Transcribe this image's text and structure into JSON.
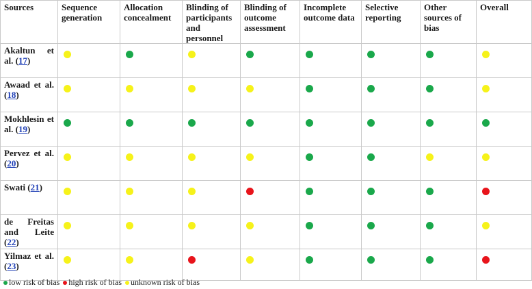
{
  "columns": [
    "Sources",
    "Sequence generation",
    "Allocation concealment",
    "Blinding of participants and personnel",
    "Blinding of outcome assessment",
    "Incomplete outcome data",
    "Selective reporting",
    "Other sources of bias",
    "Overall"
  ],
  "rows": [
    {
      "source": "Akaltun et al. (",
      "ref": "17",
      "close": ")",
      "ratings": [
        "unknown",
        "low",
        "unknown",
        "low",
        "low",
        "low",
        "low",
        "unknown"
      ]
    },
    {
      "source": "Awaad et al. (",
      "ref": "18",
      "close": ")",
      "ratings": [
        "unknown",
        "unknown",
        "unknown",
        "unknown",
        "low",
        "low",
        "low",
        "unknown"
      ]
    },
    {
      "source": "Mokhlesin et al. (",
      "ref": "19",
      "close": ")",
      "ratings": [
        "low",
        "low",
        "low",
        "low",
        "low",
        "low",
        "low",
        "low"
      ]
    },
    {
      "source": "Pervez et al. (",
      "ref": "20",
      "close": ")",
      "ratings": [
        "unknown",
        "unknown",
        "unknown",
        "unknown",
        "low",
        "low",
        "unknown",
        "unknown"
      ]
    },
    {
      "source": "Swati (",
      "ref": "21",
      "close": ")",
      "ratings": [
        "unknown",
        "unknown",
        "unknown",
        "high",
        "low",
        "low",
        "low",
        "high"
      ]
    },
    {
      "source": "de Freitas and Leite (",
      "ref": "22",
      "close": ")",
      "ratings": [
        "unknown",
        "unknown",
        "unknown",
        "unknown",
        "low",
        "low",
        "low",
        "unknown"
      ]
    },
    {
      "source": "Yilmaz et al. (",
      "ref": "23",
      "close": ")",
      "ratings": [
        "unknown",
        "unknown",
        "high",
        "unknown",
        "low",
        "low",
        "low",
        "high"
      ]
    }
  ],
  "legend": [
    {
      "key": "low",
      "label": "low risk of bias",
      "color": "#1aa84b"
    },
    {
      "key": "high",
      "label": "high risk of bias",
      "color": "#e8141b"
    },
    {
      "key": "unknown",
      "label": "unknown risk of bias",
      "color": "#f6f21a"
    }
  ]
}
